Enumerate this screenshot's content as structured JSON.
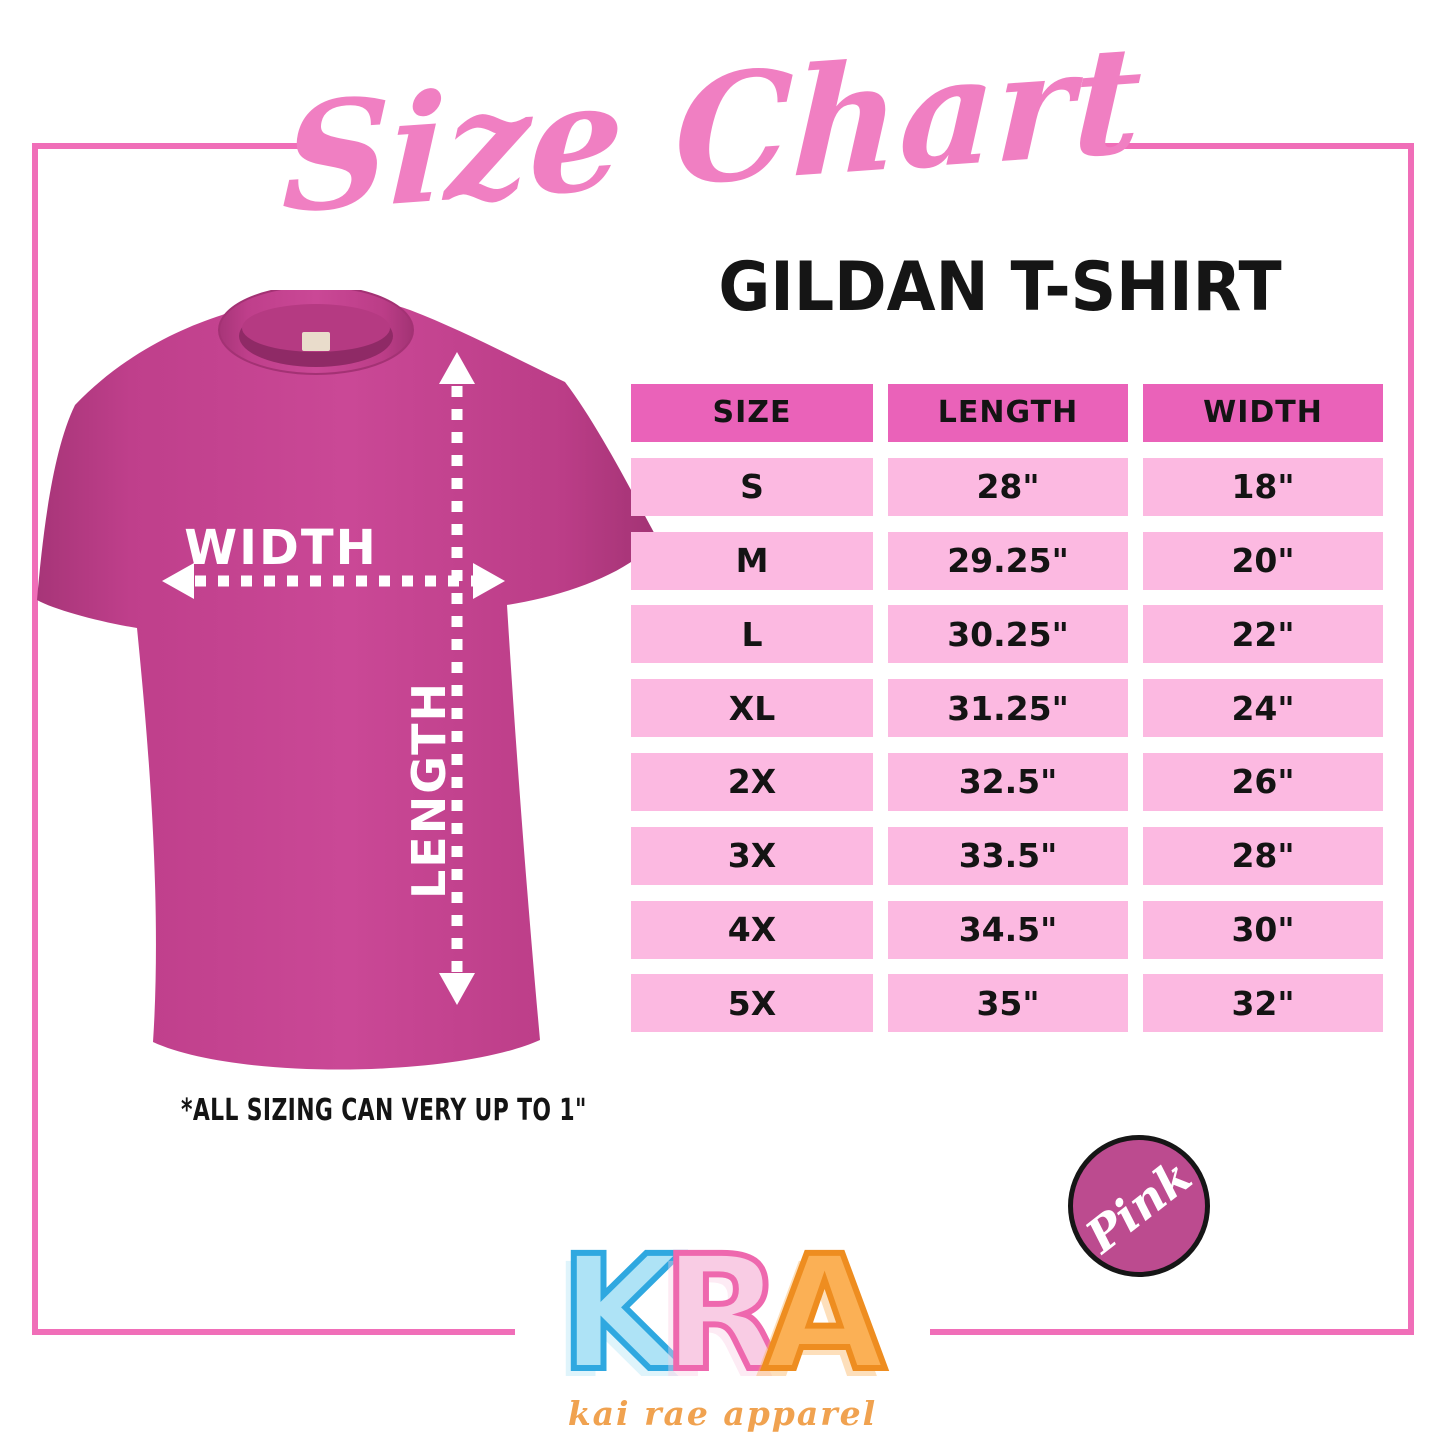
{
  "title": "Size Chart",
  "product": "GILDAN T-SHIRT",
  "note": "*ALL SIZING CAN VERY UP TO 1\"",
  "diagram": {
    "width_label": "WIDTH",
    "length_label": "LENGTH"
  },
  "badge": {
    "label": "Pink"
  },
  "logo": {
    "letters": [
      {
        "char": "K",
        "fill": "#aee3f6",
        "stroke": "#2fa8e0"
      },
      {
        "char": "R",
        "fill": "#f9cce4",
        "stroke": "#ee68ae"
      },
      {
        "char": "A",
        "fill": "#fbb055",
        "stroke": "#ee8d20"
      }
    ],
    "tagline": "kai rae apparel"
  },
  "colors": {
    "script-pink": "#f07fc2",
    "frame-pink": "#f06eb8",
    "header-pink": "#ea62b9",
    "row-pink": "#fcb9e1",
    "badge-pink": "#bc4b8f",
    "tagline-orange": "#f0a250",
    "shirt-main": "#c2418e"
  },
  "chart_data": {
    "type": "table",
    "title": "GILDAN T-SHIRT",
    "columns": [
      "SIZE",
      "LENGTH",
      "WIDTH"
    ],
    "rows": [
      [
        "S",
        "28\"",
        "18\""
      ],
      [
        "M",
        "29.25\"",
        "20\""
      ],
      [
        "L",
        "30.25\"",
        "22\""
      ],
      [
        "XL",
        "31.25\"",
        "24\""
      ],
      [
        "2X",
        "32.5\"",
        "26\""
      ],
      [
        "3X",
        "33.5\"",
        "28\""
      ],
      [
        "4X",
        "34.5\"",
        "30\""
      ],
      [
        "5X",
        "35\"",
        "32\""
      ]
    ]
  }
}
